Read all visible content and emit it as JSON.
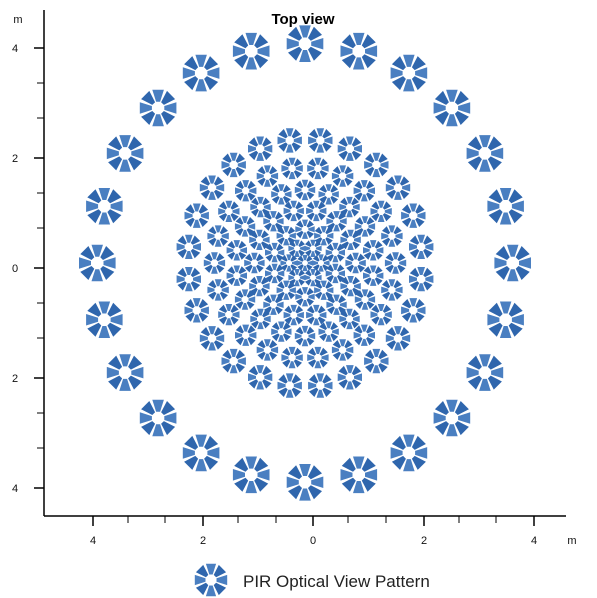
{
  "title": "Top view",
  "x_unit": "m",
  "y_unit": "m",
  "legend_label": "PIR Optical View Pattern",
  "colors": {
    "zone": "#4a7fc1",
    "zone_dark": "#2f66ad",
    "axis": "#000000"
  },
  "x_ticks": [
    "4",
    "2",
    "0",
    "2",
    "4"
  ],
  "y_ticks": [
    "4",
    "2",
    "0",
    "2",
    "4"
  ],
  "chart_data": {
    "type": "scatter",
    "title": "Top view",
    "xlabel": "m",
    "ylabel": "m",
    "xlim": [
      -4.9,
      4.9
    ],
    "ylim": [
      -4.4,
      4.6
    ],
    "marker": "octagon-zone",
    "rings": [
      {
        "radius": 0.0,
        "count": 1,
        "offset_deg": 0,
        "size": 0.16
      },
      {
        "radius": 0.3,
        "count": 6,
        "offset_deg": 0,
        "size": 0.17
      },
      {
        "radius": 0.6,
        "count": 10,
        "offset_deg": 18,
        "size": 0.19
      },
      {
        "radius": 0.95,
        "count": 14,
        "offset_deg": 0,
        "size": 0.2
      },
      {
        "radius": 1.3,
        "count": 18,
        "offset_deg": 10,
        "size": 0.2
      },
      {
        "radius": 1.7,
        "count": 22,
        "offset_deg": 0,
        "size": 0.21
      },
      {
        "radius": 2.2,
        "count": 24,
        "offset_deg": 7.5,
        "size": 0.24
      },
      {
        "radius": 3.9,
        "count": 24,
        "offset_deg": 0,
        "size": 0.36
      }
    ]
  }
}
